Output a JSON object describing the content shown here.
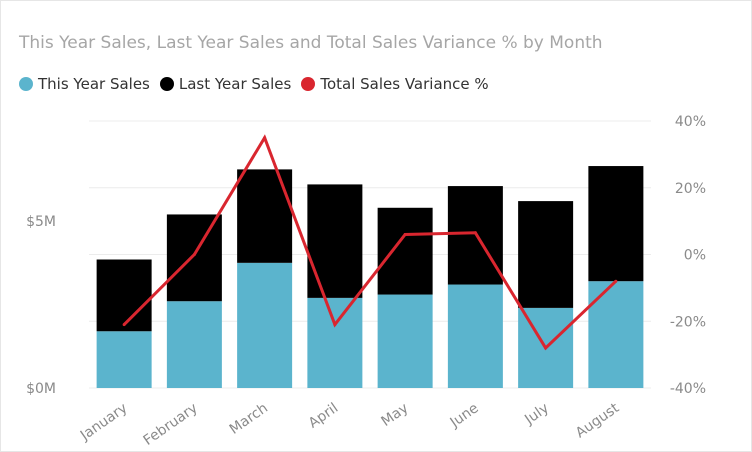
{
  "chart_data": {
    "type": "bar",
    "stacked": true,
    "title": "This Year Sales, Last Year Sales and Total Sales Variance % by Month",
    "categories": [
      "January",
      "February",
      "March",
      "April",
      "May",
      "June",
      "July",
      "August"
    ],
    "series": [
      {
        "name": "This Year Sales",
        "kind": "bar",
        "axis": "left",
        "color": "#5bb4cd",
        "values": [
          1.7,
          2.6,
          3.75,
          2.7,
          2.8,
          3.1,
          2.4,
          3.2
        ]
      },
      {
        "name": "Last Year Sales",
        "kind": "bar",
        "axis": "left",
        "color": "#000000",
        "values": [
          2.15,
          2.6,
          2.8,
          3.4,
          2.6,
          2.95,
          3.2,
          3.45
        ]
      },
      {
        "name": "Total Sales Variance %",
        "kind": "line",
        "axis": "right",
        "color": "#d9262f",
        "values": [
          -21,
          0,
          35,
          -21,
          6,
          6.5,
          -28,
          -8
        ]
      }
    ],
    "y_left": {
      "ticks": [
        0,
        5
      ],
      "tick_labels": [
        "$0M",
        "$5M"
      ],
      "ylim": [
        0,
        8
      ]
    },
    "y_right": {
      "ticks": [
        -40,
        -20,
        0,
        20,
        40
      ],
      "tick_labels": [
        "-40%",
        "-20%",
        "0%",
        "20%",
        "40%"
      ],
      "ylim": [
        -40,
        40
      ]
    },
    "grid": true,
    "legend_position": "top-left",
    "xlabel": "",
    "ylabel": ""
  }
}
